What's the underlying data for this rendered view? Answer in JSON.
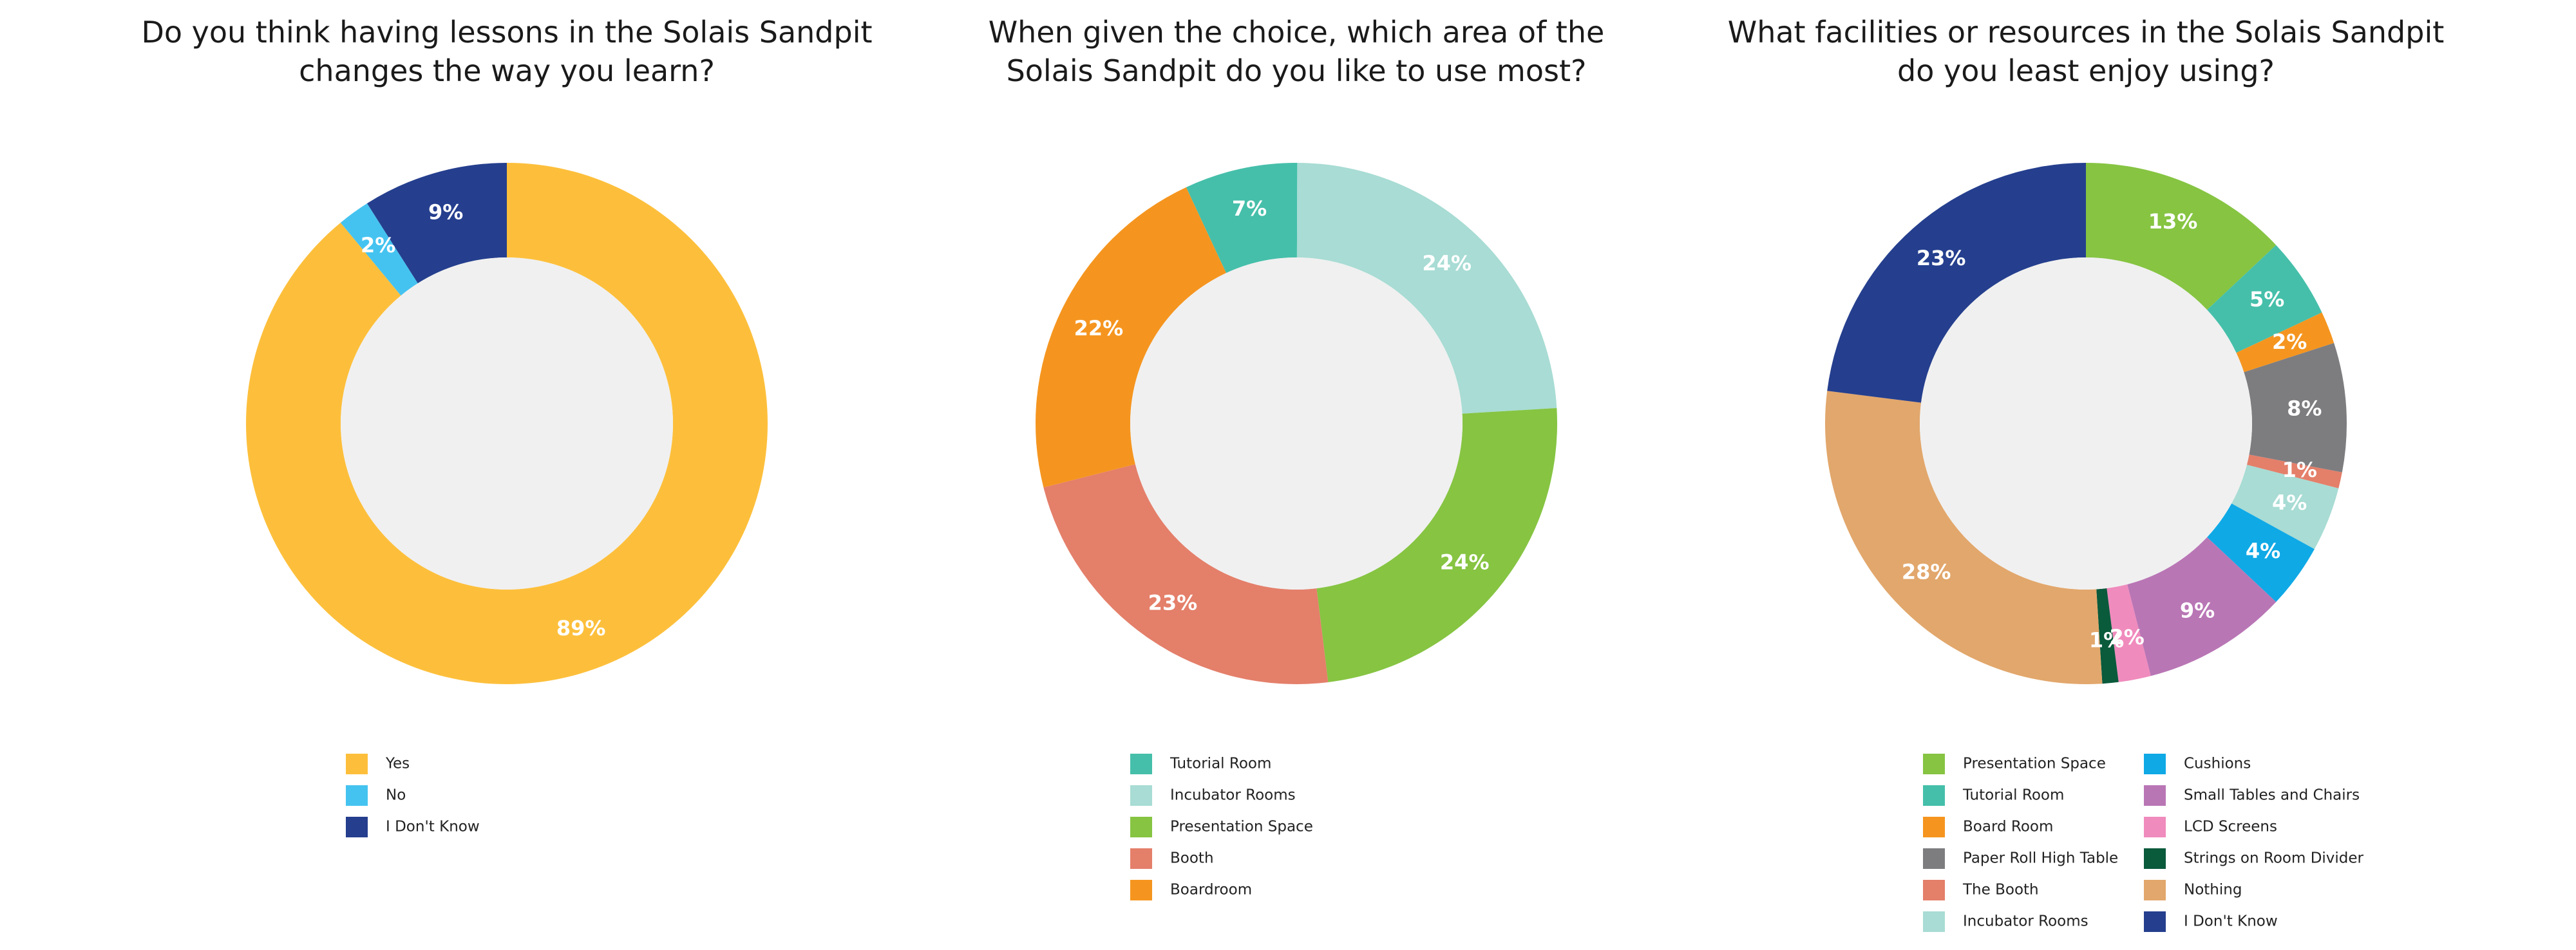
{
  "chart_data": [
    {
      "type": "pie",
      "title": "Do you think having lessons in the Solais Sandpit\nchanges the way you learn?",
      "categories": [
        "Yes",
        "No",
        "I Don't Know"
      ],
      "values": [
        89,
        2,
        9
      ],
      "value_labels": [
        "89%",
        "2%",
        "9%"
      ],
      "colors": [
        "#fdbf3b",
        "#45c3f0",
        "#253f8e"
      ],
      "start_angle": 0,
      "legend_columns": 1
    },
    {
      "type": "pie",
      "title": "When given the choice, which area of the\nSolais Sandpit do you like to use most?",
      "categories": [
        "Tutorial Room",
        "Incubator Rooms",
        "Presentation Space",
        "Booth",
        "Boardroom"
      ],
      "values": [
        7,
        24,
        24,
        23,
        22
      ],
      "value_labels": [
        "7%",
        "24%",
        "24%",
        "23%",
        "22%"
      ],
      "colors": [
        "#45bfaa",
        "#a8dcd4",
        "#86c442",
        "#e47f6a",
        "#f5951f"
      ],
      "start_angle": -25,
      "legend_columns": 1
    },
    {
      "type": "pie",
      "title": "What facilities or resources in the Solais Sandpit\ndo you least enjoy using?",
      "categories": [
        "Presentation Space",
        "Tutorial Room",
        "Board Room",
        "Paper Roll High Table",
        "The Booth",
        "Incubator Rooms",
        "Cushions",
        "Small Tables and Chairs",
        "LCD Screens",
        "Strings on Room Divider",
        "Nothing",
        "I Don't Know"
      ],
      "values": [
        13,
        5,
        2,
        8,
        1,
        4,
        4,
        9,
        2,
        1,
        28,
        23
      ],
      "value_labels": [
        "13%",
        "5%",
        "2%",
        "8%",
        "1%",
        "4%",
        "4%",
        "9%",
        "2%",
        "1%",
        "28%",
        "23%"
      ],
      "colors": [
        "#86c442",
        "#45bfaa",
        "#f5951f",
        "#7d7d80",
        "#e47f6a",
        "#a8dcd4",
        "#0fa9e6",
        "#b976b5",
        "#f08bbd",
        "#0a5a3c",
        "#e2a76c",
        "#253f8e"
      ],
      "start_angle": 0,
      "legend_columns": 2
    }
  ]
}
